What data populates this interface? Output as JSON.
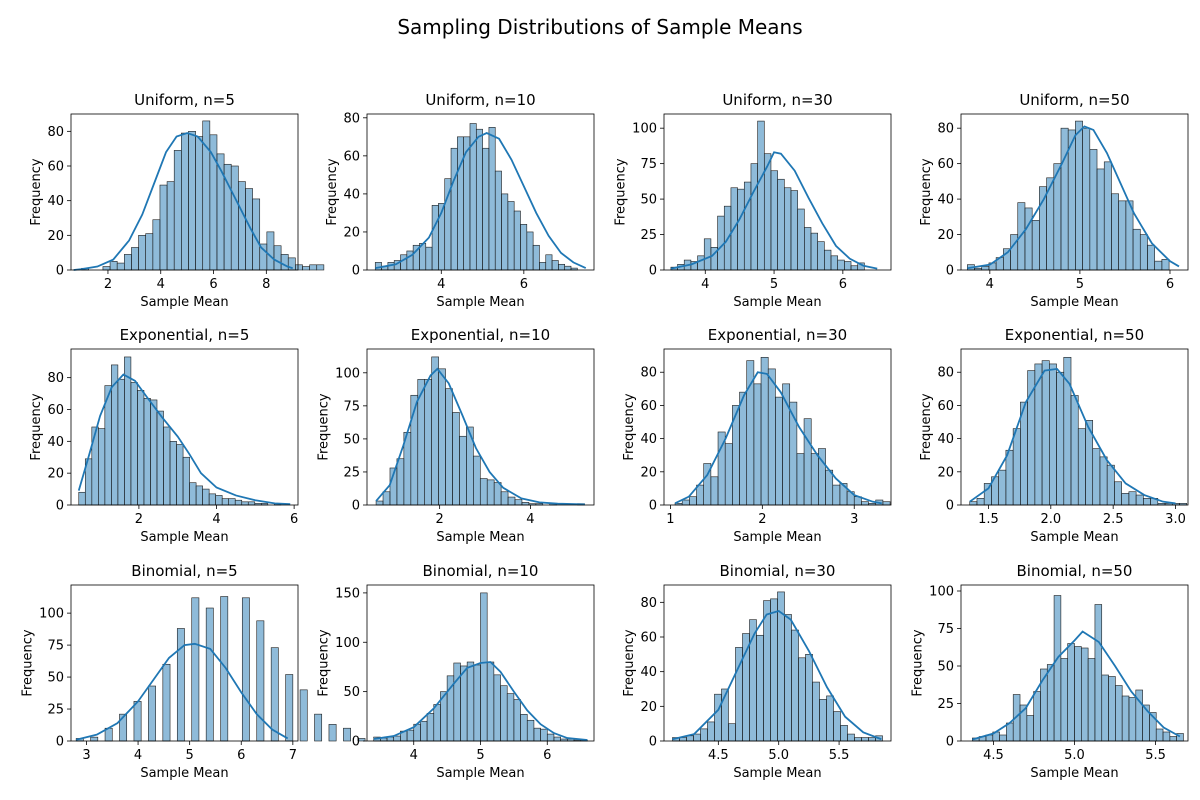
{
  "suptitle": "Sampling Distributions of Sample Means",
  "chart_data": [
    {
      "type": "bar",
      "title": "Uniform, n=5",
      "xlabel": "Sample Mean",
      "ylabel": "Frequency",
      "xlim": [
        0.6,
        9.2
      ],
      "ylim": [
        0,
        90
      ],
      "xticks": [
        2,
        4,
        6,
        8
      ],
      "yticks": [
        0,
        20,
        40,
        60,
        80
      ],
      "bin_start": 1.0,
      "bin_width": 0.27,
      "values": [
        1,
        0,
        0,
        2,
        5,
        4,
        9,
        13,
        20,
        21,
        29,
        49,
        51,
        69,
        79,
        80,
        77,
        86,
        78,
        67,
        61,
        60,
        51,
        47,
        41,
        15,
        22,
        14,
        9,
        7,
        3,
        2,
        3,
        3
      ],
      "kde": [
        [
          0.7,
          0
        ],
        [
          1.0,
          0.5
        ],
        [
          1.6,
          2
        ],
        [
          2.2,
          6
        ],
        [
          2.8,
          17
        ],
        [
          3.3,
          32
        ],
        [
          3.8,
          52
        ],
        [
          4.2,
          68
        ],
        [
          4.6,
          77
        ],
        [
          5.0,
          79
        ],
        [
          5.4,
          77
        ],
        [
          5.9,
          68
        ],
        [
          6.3,
          57
        ],
        [
          6.7,
          45
        ],
        [
          7.0,
          36
        ],
        [
          7.4,
          24
        ],
        [
          7.8,
          13
        ],
        [
          8.3,
          6
        ],
        [
          8.8,
          2
        ],
        [
          9.0,
          1
        ]
      ]
    },
    {
      "type": "bar",
      "title": "Uniform, n=10",
      "xlabel": "Sample Mean",
      "ylabel": "Frequency",
      "xlim": [
        2.2,
        7.7
      ],
      "ylim": [
        0,
        82
      ],
      "xticks": [
        4,
        6
      ],
      "yticks": [
        0,
        20,
        40,
        60,
        80
      ],
      "bin_start": 2.4,
      "bin_width": 0.153,
      "values": [
        4,
        2,
        4,
        5,
        8,
        10,
        13,
        14,
        12,
        34,
        35,
        48,
        64,
        70,
        70,
        77,
        74,
        64,
        75,
        52,
        40,
        36,
        31,
        24,
        20,
        13,
        4,
        8,
        5,
        3,
        2,
        1,
        0
      ],
      "kde": [
        [
          2.4,
          1
        ],
        [
          2.9,
          3
        ],
        [
          3.3,
          8
        ],
        [
          3.7,
          17
        ],
        [
          4.0,
          30
        ],
        [
          4.3,
          47
        ],
        [
          4.6,
          62
        ],
        [
          4.9,
          70
        ],
        [
          5.1,
          72
        ],
        [
          5.4,
          69
        ],
        [
          5.7,
          58
        ],
        [
          6.0,
          44
        ],
        [
          6.3,
          30
        ],
        [
          6.6,
          18
        ],
        [
          6.9,
          9
        ],
        [
          7.2,
          4
        ],
        [
          7.5,
          1
        ]
      ]
    },
    {
      "type": "bar",
      "title": "Uniform, n=30",
      "xlabel": "Sample Mean",
      "ylabel": "Frequency",
      "xlim": [
        3.4,
        6.7
      ],
      "ylim": [
        0,
        110
      ],
      "xticks": [
        4,
        5,
        6
      ],
      "yticks": [
        0,
        25,
        50,
        75,
        100
      ],
      "bin_start": 3.5,
      "bin_width": 0.097,
      "values": [
        2,
        4,
        7,
        6,
        10,
        22,
        16,
        38,
        45,
        58,
        57,
        62,
        75,
        105,
        82,
        70,
        64,
        58,
        56,
        43,
        30,
        26,
        20,
        14,
        10,
        7,
        6,
        3,
        5
      ],
      "kde": [
        [
          3.5,
          1
        ],
        [
          3.8,
          4
        ],
        [
          4.1,
          10
        ],
        [
          4.3,
          20
        ],
        [
          4.5,
          36
        ],
        [
          4.7,
          55
        ],
        [
          4.9,
          73
        ],
        [
          5.0,
          83
        ],
        [
          5.1,
          82
        ],
        [
          5.3,
          70
        ],
        [
          5.5,
          51
        ],
        [
          5.7,
          33
        ],
        [
          5.9,
          17
        ],
        [
          6.1,
          8
        ],
        [
          6.3,
          3
        ],
        [
          6.5,
          1
        ]
      ]
    },
    {
      "type": "bar",
      "title": "Uniform, n=50",
      "xlabel": "Sample Mean",
      "ylabel": "Frequency",
      "xlim": [
        3.68,
        6.2
      ],
      "ylim": [
        0,
        88
      ],
      "xticks": [
        4,
        5,
        6
      ],
      "yticks": [
        0,
        20,
        40,
        60,
        80
      ],
      "bin_start": 3.75,
      "bin_width": 0.08,
      "values": [
        3,
        1,
        2,
        4,
        7,
        12,
        20,
        38,
        35,
        28,
        47,
        52,
        60,
        80,
        79,
        84,
        80,
        68,
        57,
        61,
        43,
        39,
        39,
        23,
        20,
        14,
        5,
        6
      ],
      "kde": [
        [
          3.75,
          1
        ],
        [
          4.0,
          3
        ],
        [
          4.2,
          10
        ],
        [
          4.4,
          23
        ],
        [
          4.6,
          40
        ],
        [
          4.8,
          60
        ],
        [
          4.95,
          76
        ],
        [
          5.05,
          81
        ],
        [
          5.15,
          79
        ],
        [
          5.3,
          66
        ],
        [
          5.45,
          49
        ],
        [
          5.6,
          32
        ],
        [
          5.8,
          15
        ],
        [
          6.0,
          5
        ],
        [
          6.1,
          2
        ]
      ]
    },
    {
      "type": "bar",
      "title": "Exponential, n=5",
      "xlabel": "Sample Mean",
      "ylabel": "Frequency",
      "xlim": [
        0.25,
        6.1
      ],
      "ylim": [
        0,
        98
      ],
      "xticks": [
        2,
        4,
        6
      ],
      "yticks": [
        0,
        20,
        40,
        60,
        80
      ],
      "bin_start": 0.45,
      "bin_width": 0.168,
      "values": [
        8,
        29,
        49,
        48,
        75,
        88,
        79,
        93,
        77,
        72,
        67,
        66,
        59,
        49,
        40,
        38,
        30,
        14,
        12,
        10,
        7,
        6,
        4,
        4,
        3,
        2,
        2,
        1,
        1,
        0,
        1,
        0
      ],
      "kde": [
        [
          0.45,
          9
        ],
        [
          0.7,
          30
        ],
        [
          1.0,
          56
        ],
        [
          1.3,
          74
        ],
        [
          1.6,
          82
        ],
        [
          1.9,
          78
        ],
        [
          2.2,
          68
        ],
        [
          2.6,
          55
        ],
        [
          3.0,
          43
        ],
        [
          3.3,
          32
        ],
        [
          3.6,
          20
        ],
        [
          4.0,
          11
        ],
        [
          4.5,
          6
        ],
        [
          5.0,
          3
        ],
        [
          5.5,
          1
        ],
        [
          5.9,
          0.5
        ]
      ]
    },
    {
      "type": "bar",
      "title": "Exponential, n=10",
      "xlabel": "Sample Mean",
      "ylabel": "Frequency",
      "xlim": [
        0.4,
        5.4
      ],
      "ylim": [
        0,
        118
      ],
      "xticks": [
        2,
        4
      ],
      "yticks": [
        0,
        25,
        50,
        75,
        100
      ],
      "bin_start": 0.6,
      "bin_width": 0.153,
      "values": [
        3,
        10,
        28,
        35,
        55,
        83,
        95,
        95,
        112,
        103,
        88,
        70,
        52,
        59,
        37,
        20,
        19,
        17,
        10,
        6,
        4,
        2,
        1,
        1,
        0,
        1,
        0,
        0,
        0,
        1,
        0
      ],
      "kde": [
        [
          0.6,
          3
        ],
        [
          0.9,
          15
        ],
        [
          1.2,
          45
        ],
        [
          1.5,
          78
        ],
        [
          1.8,
          98
        ],
        [
          1.95,
          103
        ],
        [
          2.2,
          92
        ],
        [
          2.5,
          68
        ],
        [
          2.8,
          43
        ],
        [
          3.1,
          25
        ],
        [
          3.4,
          13
        ],
        [
          3.8,
          5
        ],
        [
          4.2,
          2
        ],
        [
          4.6,
          1
        ],
        [
          5.2,
          0.5
        ]
      ]
    },
    {
      "type": "bar",
      "title": "Exponential, n=30",
      "xlabel": "Sample Mean",
      "ylabel": "Frequency",
      "xlim": [
        0.93,
        3.4
      ],
      "ylim": [
        0,
        94
      ],
      "xticks": [
        1,
        2,
        3
      ],
      "yticks": [
        0,
        20,
        40,
        60,
        80
      ],
      "bin_start": 1.05,
      "bin_width": 0.078,
      "values": [
        1,
        3,
        5,
        12,
        25,
        17,
        44,
        37,
        60,
        68,
        87,
        73,
        89,
        82,
        65,
        73,
        62,
        31,
        52,
        31,
        34,
        21,
        12,
        13,
        8,
        5,
        2,
        1,
        3,
        2
      ],
      "kde": [
        [
          1.05,
          1
        ],
        [
          1.2,
          5
        ],
        [
          1.4,
          18
        ],
        [
          1.6,
          40
        ],
        [
          1.8,
          66
        ],
        [
          1.95,
          80
        ],
        [
          2.05,
          79
        ],
        [
          2.2,
          68
        ],
        [
          2.4,
          47
        ],
        [
          2.6,
          30
        ],
        [
          2.8,
          16
        ],
        [
          3.0,
          6
        ],
        [
          3.2,
          2
        ],
        [
          3.3,
          1
        ]
      ]
    },
    {
      "type": "bar",
      "title": "Exponential, n=50",
      "xlabel": "Sample Mean",
      "ylabel": "Frequency",
      "xlim": [
        1.28,
        3.1
      ],
      "ylim": [
        0,
        94
      ],
      "xticks": [
        1.5,
        2.0,
        2.5,
        3.0
      ],
      "yticks": [
        0,
        20,
        40,
        60,
        80
      ],
      "bin_start": 1.35,
      "bin_width": 0.058,
      "values": [
        2,
        4,
        13,
        17,
        21,
        33,
        46,
        62,
        81,
        85,
        87,
        85,
        80,
        89,
        66,
        46,
        51,
        34,
        29,
        24,
        14,
        7,
        8,
        6,
        4,
        4,
        1,
        1,
        1,
        1
      ],
      "kde": [
        [
          1.35,
          2
        ],
        [
          1.5,
          10
        ],
        [
          1.65,
          30
        ],
        [
          1.8,
          62
        ],
        [
          1.95,
          81
        ],
        [
          2.05,
          82
        ],
        [
          2.15,
          73
        ],
        [
          2.3,
          47
        ],
        [
          2.45,
          27
        ],
        [
          2.6,
          13
        ],
        [
          2.75,
          6
        ],
        [
          2.9,
          2
        ],
        [
          3.0,
          1
        ]
      ]
    },
    {
      "type": "bar",
      "title": "Binomial, n=5",
      "xlabel": "Sample Mean",
      "ylabel": "Frequency",
      "xlim": [
        2.7,
        7.1
      ],
      "ylim": [
        0,
        122
      ],
      "xticks": [
        3,
        4,
        5,
        6,
        7
      ],
      "yticks": [
        0,
        25,
        50,
        75,
        100
      ],
      "bin_start": 2.8,
      "bin_width": 0.14,
      "values": [
        2,
        0,
        3,
        0,
        10,
        0,
        21,
        0,
        31,
        0,
        43,
        0,
        60,
        0,
        88,
        0,
        112,
        0,
        104,
        0,
        113,
        0,
        0,
        112,
        0,
        94,
        0,
        73,
        0,
        52,
        0,
        40,
        0,
        21,
        0,
        13,
        0,
        10,
        0,
        2
      ],
      "kde": [
        [
          2.8,
          1
        ],
        [
          3.2,
          5
        ],
        [
          3.6,
          14
        ],
        [
          4.0,
          31
        ],
        [
          4.3,
          48
        ],
        [
          4.6,
          65
        ],
        [
          4.9,
          75
        ],
        [
          5.1,
          76
        ],
        [
          5.4,
          72
        ],
        [
          5.7,
          57
        ],
        [
          6.0,
          38
        ],
        [
          6.3,
          21
        ],
        [
          6.6,
          9
        ],
        [
          6.9,
          2
        ]
      ]
    },
    {
      "type": "bar",
      "title": "Binomial, n=10",
      "xlabel": "Sample Mean",
      "ylabel": "Frequency",
      "xlim": [
        3.3,
        6.7
      ],
      "ylim": [
        0,
        158
      ],
      "xticks": [
        4,
        5,
        6
      ],
      "yticks": [
        0,
        50,
        100,
        150
      ],
      "bin_start": 3.4,
      "bin_width": 0.1,
      "values": [
        4,
        3,
        4,
        5,
        10,
        11,
        17,
        20,
        28,
        37,
        50,
        66,
        79,
        76,
        80,
        77,
        150,
        80,
        67,
        56,
        48,
        42,
        27,
        21,
        13,
        12,
        7,
        4,
        2,
        2,
        1,
        1
      ],
      "kde": [
        [
          3.4,
          2
        ],
        [
          3.7,
          5
        ],
        [
          4.0,
          14
        ],
        [
          4.3,
          33
        ],
        [
          4.6,
          58
        ],
        [
          4.8,
          74
        ],
        [
          5.0,
          79
        ],
        [
          5.15,
          80
        ],
        [
          5.3,
          70
        ],
        [
          5.5,
          50
        ],
        [
          5.7,
          31
        ],
        [
          5.9,
          17
        ],
        [
          6.1,
          8
        ],
        [
          6.3,
          3
        ],
        [
          6.6,
          1
        ]
      ]
    },
    {
      "type": "bar",
      "title": "Binomial, n=30",
      "xlabel": "Sample Mean",
      "ylabel": "Frequency",
      "xlim": [
        4.05,
        5.93
      ],
      "ylim": [
        0,
        90
      ],
      "xticks": [
        4.5,
        5.0,
        5.5
      ],
      "yticks": [
        0,
        20,
        40,
        60,
        80
      ],
      "bin_start": 4.12,
      "bin_width": 0.058,
      "values": [
        2,
        2,
        3,
        4,
        7,
        11,
        27,
        30,
        10,
        54,
        62,
        70,
        61,
        81,
        82,
        86,
        73,
        64,
        48,
        50,
        34,
        24,
        26,
        17,
        9,
        4,
        2,
        2,
        2,
        3
      ],
      "kde": [
        [
          4.12,
          1
        ],
        [
          4.3,
          4
        ],
        [
          4.5,
          18
        ],
        [
          4.65,
          40
        ],
        [
          4.8,
          62
        ],
        [
          4.9,
          73
        ],
        [
          5.0,
          75
        ],
        [
          5.1,
          70
        ],
        [
          5.25,
          52
        ],
        [
          5.4,
          31
        ],
        [
          5.55,
          14
        ],
        [
          5.7,
          5
        ],
        [
          5.85,
          1
        ]
      ]
    },
    {
      "type": "bar",
      "title": "Binomial, n=50",
      "xlabel": "Sample Mean",
      "ylabel": "Frequency",
      "xlim": [
        4.3,
        5.7
      ],
      "ylim": [
        0,
        104
      ],
      "xticks": [
        4.5,
        5.0,
        5.5
      ],
      "yticks": [
        0,
        25,
        50,
        75,
        100
      ],
      "bin_start": 4.37,
      "bin_width": 0.042,
      "values": [
        2,
        3,
        4,
        6,
        4,
        12,
        31,
        24,
        17,
        33,
        48,
        51,
        97,
        55,
        65,
        63,
        62,
        55,
        91,
        44,
        43,
        37,
        30,
        29,
        34,
        24,
        19,
        8,
        6,
        3,
        5
      ],
      "kde": [
        [
          4.37,
          1
        ],
        [
          4.5,
          5
        ],
        [
          4.6,
          12
        ],
        [
          4.7,
          22
        ],
        [
          4.8,
          40
        ],
        [
          4.9,
          56
        ],
        [
          5.0,
          67
        ],
        [
          5.05,
          73
        ],
        [
          5.15,
          66
        ],
        [
          5.25,
          50
        ],
        [
          5.35,
          33
        ],
        [
          5.45,
          20
        ],
        [
          5.55,
          9
        ],
        [
          5.65,
          3
        ]
      ]
    }
  ]
}
